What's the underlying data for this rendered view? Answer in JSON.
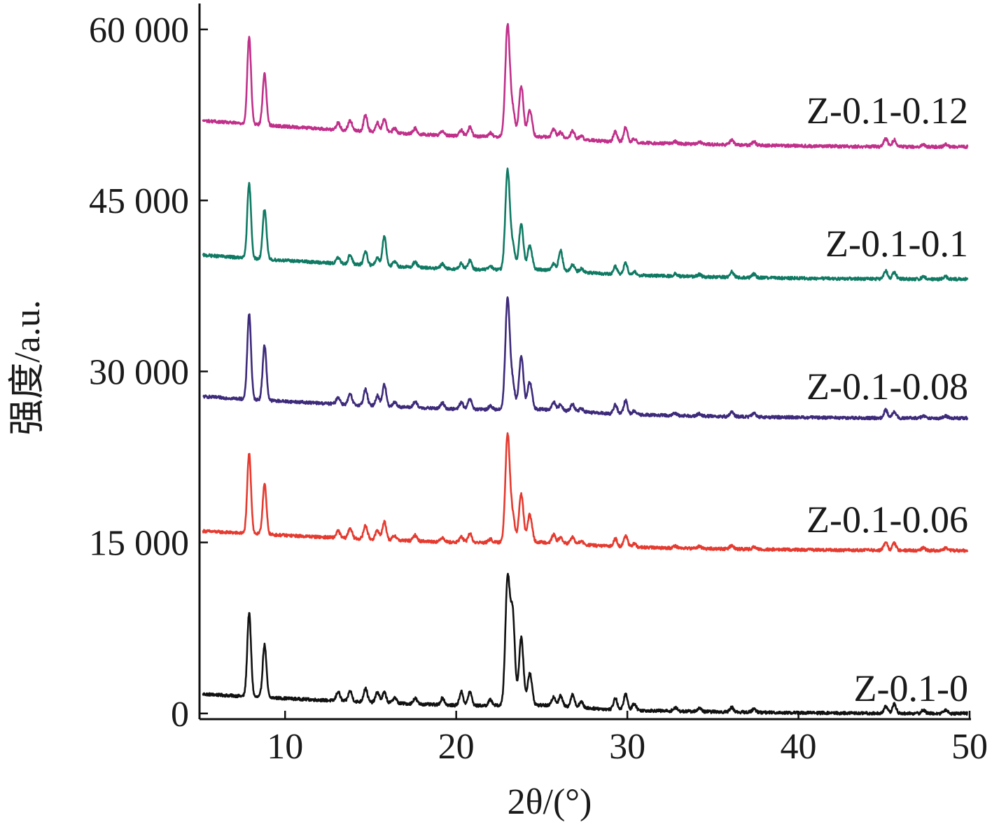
{
  "chart_data": {
    "type": "line",
    "xlabel": "2θ/(°)",
    "ylabel": "强度/a.u.",
    "xlim": [
      5,
      50
    ],
    "ylim": [
      -500,
      62000
    ],
    "x_ticks": [
      10,
      20,
      30,
      40,
      50
    ],
    "y_ticks": [
      {
        "value": 0,
        "label": "0"
      },
      {
        "value": 15000,
        "label": "15 000"
      },
      {
        "value": 30000,
        "label": "30 000"
      },
      {
        "value": 45000,
        "label": "45 000"
      },
      {
        "value": 60000,
        "label": "60 000"
      }
    ],
    "grid": false,
    "legend": "labels beside each trace at right",
    "peaks_2theta": [
      7.9,
      8.8,
      13.1,
      13.8,
      14.7,
      15.4,
      15.8,
      16.4,
      17.6,
      19.2,
      20.3,
      20.8,
      22.0,
      23.0,
      23.3,
      23.8,
      24.3,
      25.7,
      26.1,
      26.8,
      27.3,
      29.3,
      29.9,
      30.4,
      32.8,
      34.2,
      36.1,
      37.4,
      45.1,
      45.6,
      47.3,
      48.6
    ],
    "series": [
      {
        "name": "Z-0.1-0",
        "color": "#111111",
        "baseline": 1700,
        "end": 0,
        "peak_heights": [
          7300,
          4600,
          800,
          900,
          1200,
          900,
          900,
          500,
          500,
          600,
          1200,
          1200,
          500,
          10900,
          7900,
          5900,
          2800,
          800,
          900,
          1100,
          500,
          1000,
          1400,
          600,
          300,
          300,
          400,
          300,
          600,
          800,
          300,
          300
        ]
      },
      {
        "name": "Z-0.1-0.06",
        "color": "#e53a2f",
        "baseline": 16000,
        "end": 14300,
        "peak_heights": [
          7000,
          4400,
          600,
          900,
          1200,
          800,
          1600,
          400,
          500,
          400,
          500,
          800,
          300,
          9400,
          2200,
          4200,
          2400,
          700,
          500,
          600,
          300,
          700,
          1000,
          300,
          200,
          200,
          300,
          200,
          700,
          600,
          200,
          200
        ]
      },
      {
        "name": "Z-0.1-0.08",
        "color": "#3d2a7a",
        "baseline": 27800,
        "end": 25900,
        "peak_heights": [
          7500,
          4800,
          600,
          900,
          1400,
          900,
          1900,
          400,
          500,
          500,
          600,
          900,
          300,
          9600,
          2200,
          4600,
          2400,
          700,
          500,
          600,
          300,
          800,
          1200,
          300,
          200,
          200,
          400,
          300,
          700,
          600,
          200,
          200
        ]
      },
      {
        "name": "Z-0.1-0.1",
        "color": "#0f7a63",
        "baseline": 40200,
        "end": 38100,
        "peak_heights": [
          6500,
          4400,
          500,
          800,
          1200,
          700,
          2600,
          400,
          500,
          400,
          500,
          800,
          300,
          8600,
          2000,
          3900,
          2100,
          600,
          1800,
          600,
          300,
          700,
          1100,
          300,
          200,
          200,
          500,
          300,
          700,
          600,
          200,
          200
        ]
      },
      {
        "name": "Z-0.1-0.12",
        "color": "#c0308a",
        "baseline": 52000,
        "end": 49700,
        "peak_heights": [
          7600,
          4500,
          600,
          900,
          1400,
          800,
          1200,
          400,
          500,
          400,
          500,
          800,
          300,
          9700,
          2300,
          4400,
          2300,
          700,
          500,
          700,
          300,
          900,
          1300,
          300,
          200,
          200,
          400,
          300,
          700,
          600,
          200,
          200
        ]
      }
    ]
  }
}
